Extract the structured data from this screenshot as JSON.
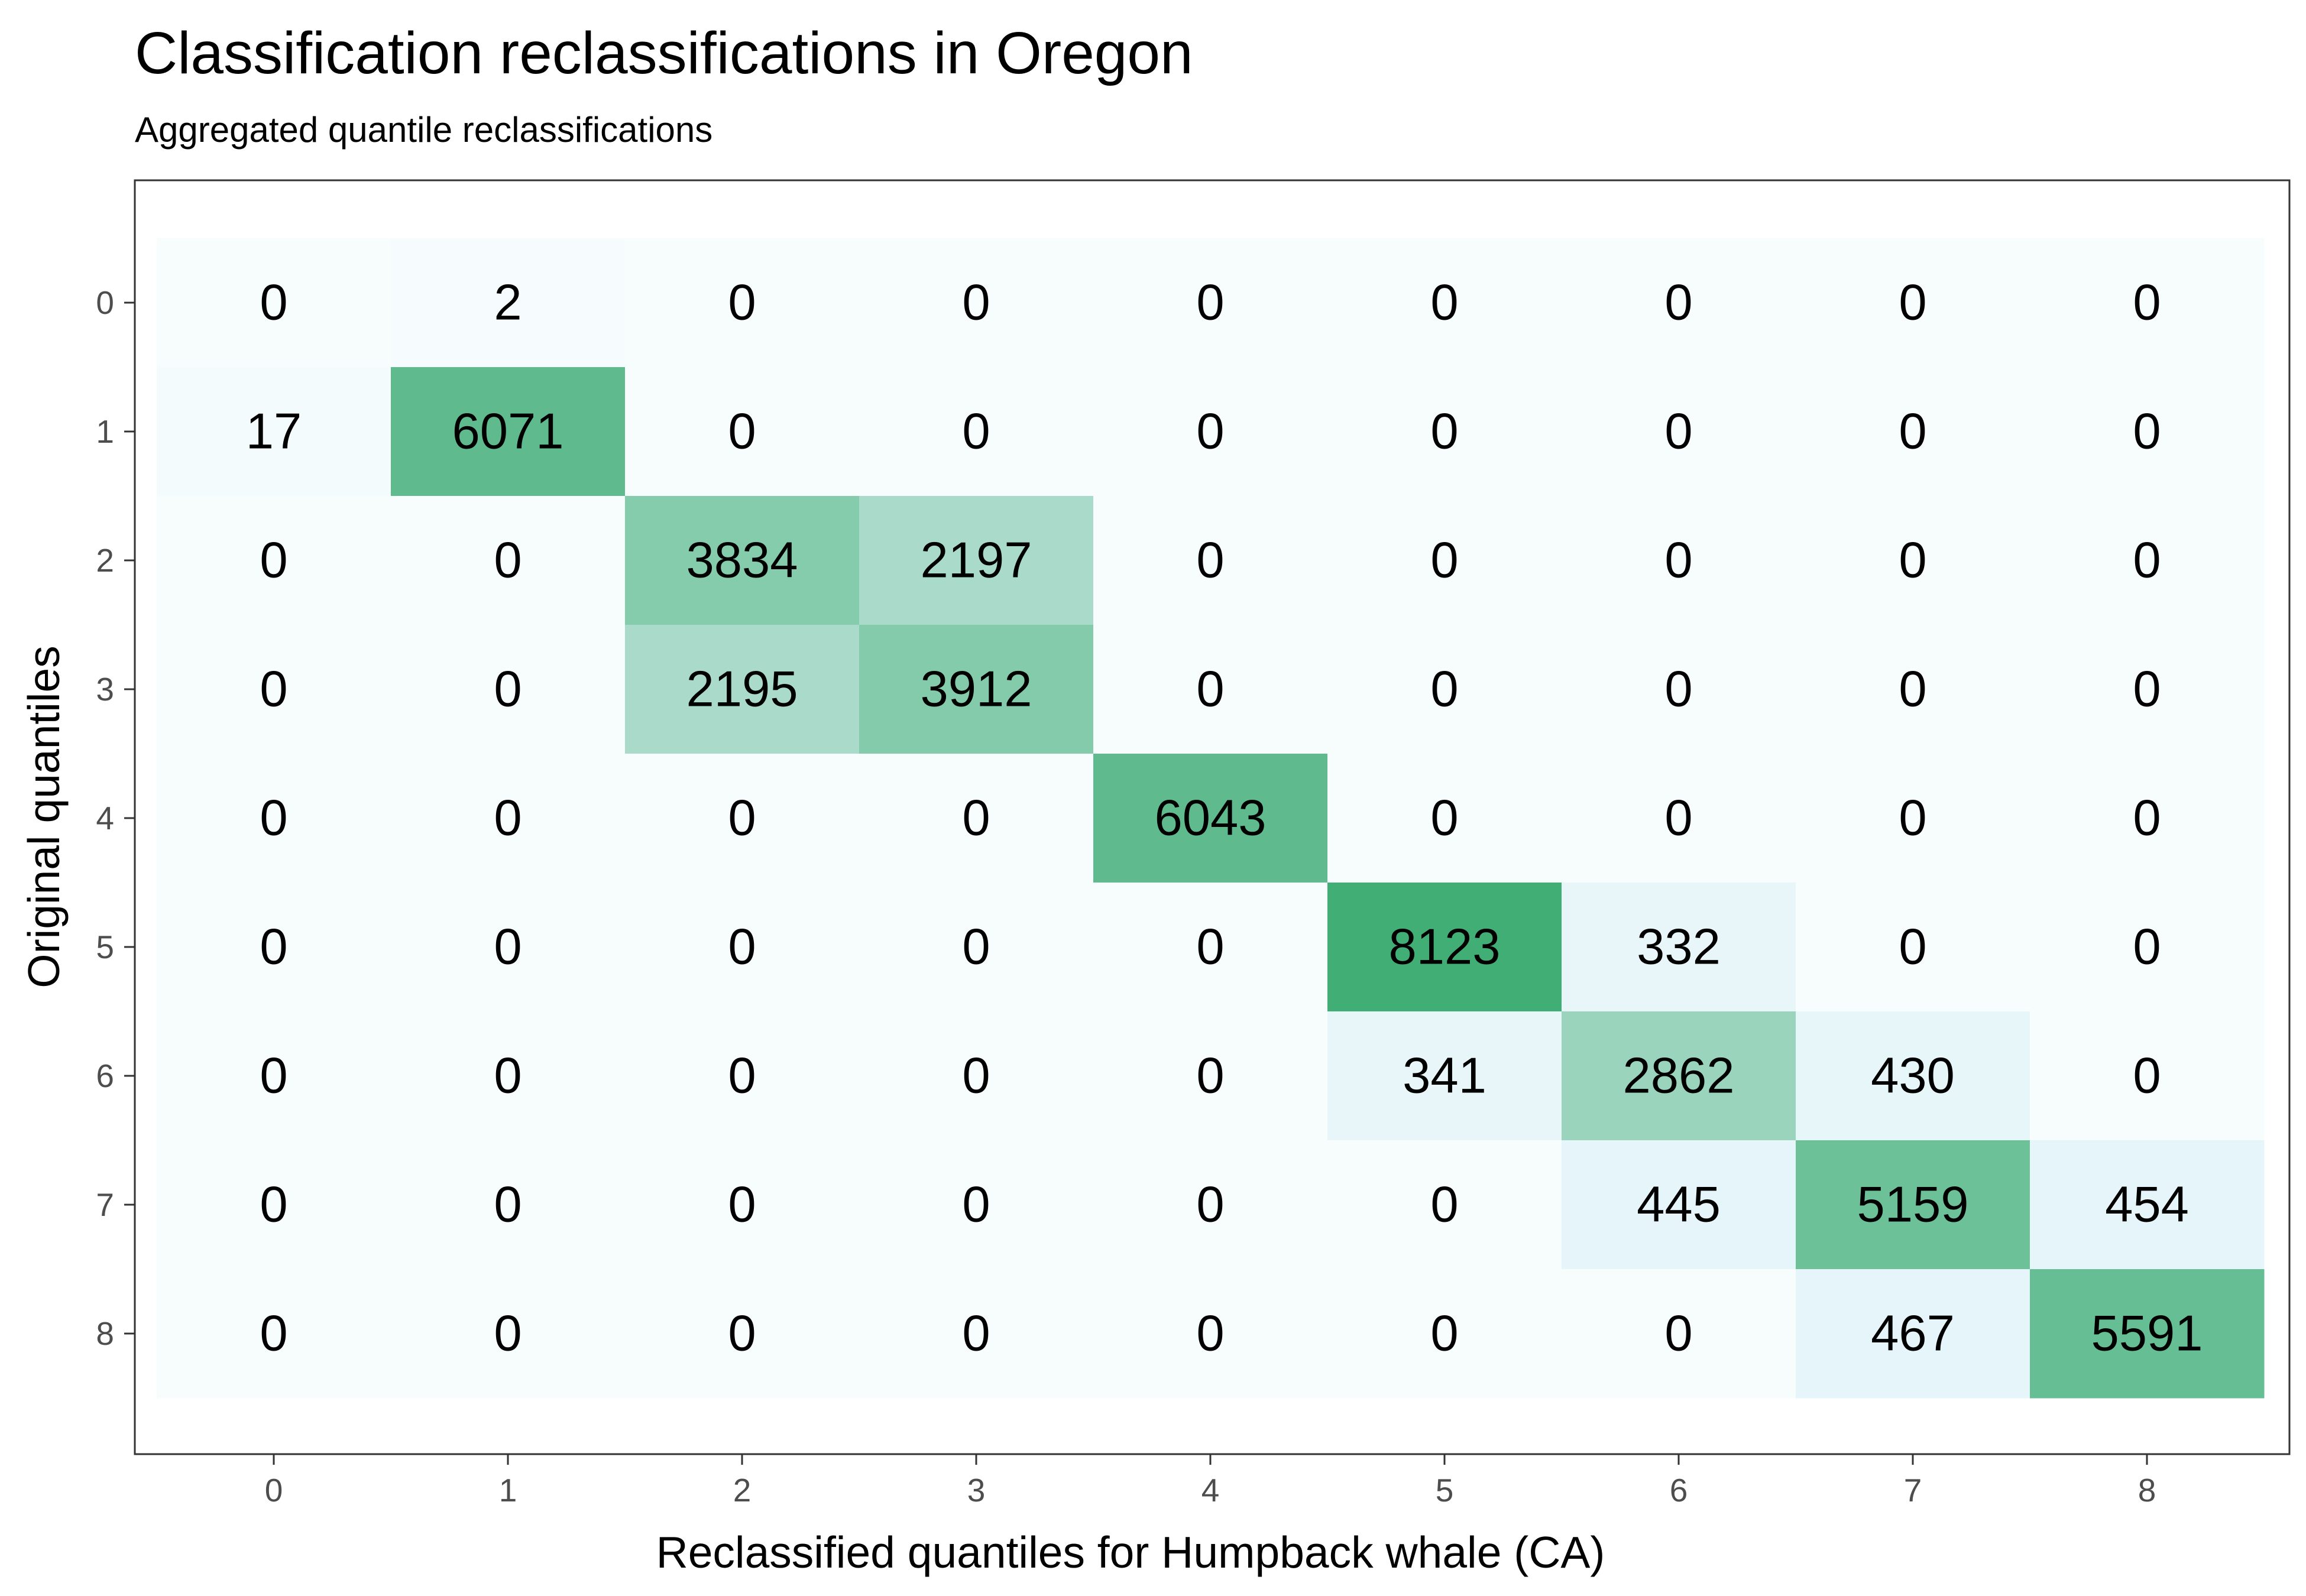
{
  "chart_data": {
    "type": "heatmap",
    "title": "Classification reclassifications in Oregon",
    "subtitle": "Aggregated quantile reclassifications",
    "xlabel": "Reclassified quantiles for Humpback whale (CA)",
    "ylabel": "Original quantiles",
    "x_categories": [
      "0",
      "1",
      "2",
      "3",
      "4",
      "5",
      "6",
      "7",
      "8"
    ],
    "y_categories": [
      "0",
      "1",
      "2",
      "3",
      "4",
      "5",
      "6",
      "7",
      "8"
    ],
    "values": [
      [
        0,
        2,
        0,
        0,
        0,
        0,
        0,
        0,
        0
      ],
      [
        17,
        6071,
        0,
        0,
        0,
        0,
        0,
        0,
        0
      ],
      [
        0,
        0,
        3834,
        2197,
        0,
        0,
        0,
        0,
        0
      ],
      [
        0,
        0,
        2195,
        3912,
        0,
        0,
        0,
        0,
        0
      ],
      [
        0,
        0,
        0,
        0,
        6043,
        0,
        0,
        0,
        0
      ],
      [
        0,
        0,
        0,
        0,
        0,
        8123,
        332,
        0,
        0
      ],
      [
        0,
        0,
        0,
        0,
        0,
        341,
        2862,
        430,
        0
      ],
      [
        0,
        0,
        0,
        0,
        0,
        0,
        445,
        5159,
        454
      ],
      [
        0,
        0,
        0,
        0,
        0,
        0,
        0,
        467,
        5591
      ]
    ],
    "colors": {
      "low": "#f7fcfd",
      "mid": "#e5f5f9",
      "high": "#41ae76"
    },
    "grid": false,
    "legend": "none"
  }
}
